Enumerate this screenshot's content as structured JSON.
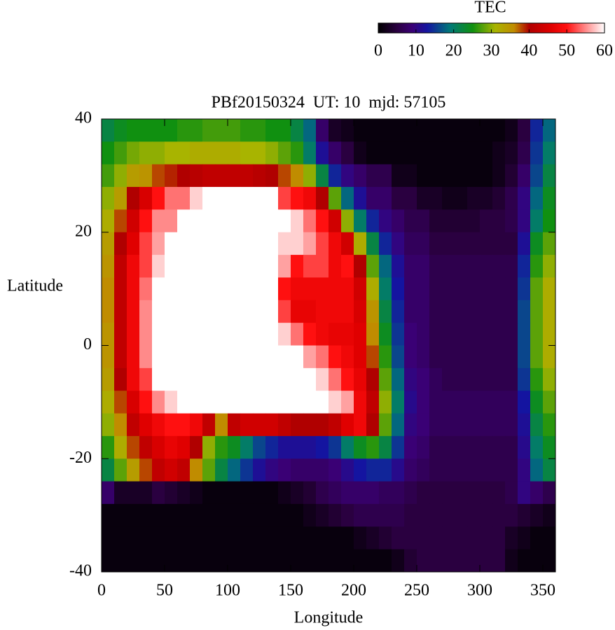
{
  "chart_data": {
    "type": "heatmap",
    "title": "PBf20150324  UT: 10  mjd: 57105",
    "x_label": "Longitude",
    "y_label": "Latitude",
    "xlim": [
      0,
      360
    ],
    "ylim": [
      -40,
      40
    ],
    "xticks": [
      0,
      50,
      100,
      150,
      200,
      250,
      300,
      350
    ],
    "yticks": [
      40,
      20,
      0,
      -20,
      -40
    ],
    "x": [
      5,
      15,
      25,
      35,
      45,
      55,
      65,
      75,
      85,
      95,
      105,
      115,
      125,
      135,
      145,
      155,
      165,
      175,
      185,
      195,
      205,
      215,
      225,
      235,
      245,
      255,
      265,
      275,
      285,
      295,
      305,
      315,
      325,
      335,
      345,
      355
    ],
    "y": [
      38,
      34,
      30,
      26,
      22,
      18,
      14,
      10,
      6,
      2,
      -2,
      -6,
      -10,
      -14,
      -18,
      -22,
      -26,
      -30,
      -34,
      -38
    ],
    "values": [
      [
        22,
        24,
        25,
        25,
        25,
        25,
        26,
        26,
        27,
        27,
        27,
        26,
        26,
        25,
        25,
        22,
        18,
        8,
        3,
        2,
        1,
        1,
        1,
        1,
        1,
        1,
        1,
        1,
        1,
        1,
        1,
        1,
        2,
        5,
        14,
        18
      ],
      [
        25,
        27,
        29,
        30,
        30,
        31,
        31,
        32,
        32,
        32,
        32,
        31,
        31,
        30,
        28,
        26,
        20,
        12,
        8,
        5,
        2,
        1,
        1,
        1,
        1,
        1,
        1,
        1,
        1,
        1,
        1,
        2,
        3,
        6,
        15,
        20
      ],
      [
        27,
        30,
        34,
        35,
        38,
        39,
        40,
        41,
        42,
        42,
        42,
        42,
        41,
        40,
        38,
        36,
        30,
        22,
        14,
        10,
        8,
        6,
        6,
        2,
        2,
        1,
        1,
        1,
        1,
        1,
        1,
        2,
        4,
        8,
        16,
        22
      ],
      [
        30,
        34,
        40,
        45,
        50,
        54,
        54,
        58,
        60,
        60,
        60,
        60,
        60,
        60,
        52,
        50,
        48,
        40,
        28,
        18,
        12,
        8,
        8,
        5,
        5,
        3,
        3,
        2,
        2,
        3,
        3,
        4,
        6,
        10,
        18,
        24
      ],
      [
        32,
        38,
        44,
        50,
        55,
        55,
        60,
        60,
        60,
        60,
        60,
        60,
        60,
        60,
        60,
        58,
        54,
        50,
        44,
        30,
        20,
        14,
        10,
        8,
        6,
        6,
        4,
        4,
        4,
        4,
        5,
        5,
        6,
        10,
        20,
        25
      ],
      [
        34,
        40,
        46,
        52,
        56,
        60,
        60,
        60,
        60,
        60,
        60,
        60,
        60,
        60,
        58,
        58,
        56,
        52,
        48,
        44,
        32,
        22,
        14,
        10,
        7,
        7,
        5,
        5,
        5,
        5,
        5,
        5,
        5,
        12,
        24,
        28
      ],
      [
        35,
        42,
        48,
        52,
        58,
        60,
        60,
        60,
        60,
        60,
        60,
        60,
        60,
        60,
        56,
        50,
        52,
        52,
        48,
        50,
        40,
        28,
        18,
        12,
        8,
        8,
        6,
        6,
        6,
        6,
        6,
        6,
        6,
        14,
        26,
        30
      ],
      [
        36,
        42,
        48,
        54,
        60,
        60,
        60,
        60,
        60,
        60,
        60,
        60,
        60,
        60,
        50,
        48,
        48,
        48,
        48,
        48,
        44,
        32,
        20,
        13,
        8,
        8,
        6,
        6,
        6,
        6,
        6,
        6,
        6,
        15,
        28,
        32
      ],
      [
        36,
        42,
        48,
        55,
        60,
        60,
        60,
        60,
        60,
        60,
        60,
        60,
        60,
        60,
        52,
        47,
        47,
        48,
        48,
        48,
        45,
        35,
        22,
        14,
        8,
        8,
        6,
        6,
        6,
        6,
        6,
        6,
        6,
        16,
        28,
        32
      ],
      [
        35,
        42,
        48,
        55,
        60,
        60,
        60,
        60,
        60,
        60,
        60,
        60,
        60,
        60,
        58,
        54,
        50,
        48,
        47,
        47,
        46,
        36,
        24,
        15,
        9,
        8,
        6,
        6,
        6,
        6,
        6,
        6,
        6,
        16,
        28,
        32
      ],
      [
        35,
        42,
        48,
        55,
        60,
        60,
        60,
        60,
        60,
        60,
        60,
        60,
        60,
        60,
        60,
        60,
        56,
        54,
        50,
        48,
        46,
        38,
        26,
        16,
        9,
        8,
        6,
        6,
        6,
        6,
        6,
        6,
        6,
        16,
        28,
        32
      ],
      [
        34,
        40,
        48,
        52,
        60,
        60,
        60,
        60,
        60,
        60,
        60,
        60,
        60,
        60,
        60,
        60,
        60,
        58,
        54,
        50,
        47,
        40,
        28,
        18,
        10,
        9,
        7,
        6,
        6,
        6,
        6,
        6,
        6,
        15,
        26,
        30
      ],
      [
        32,
        38,
        45,
        50,
        55,
        58,
        60,
        60,
        60,
        60,
        60,
        60,
        60,
        60,
        60,
        60,
        60,
        60,
        58,
        56,
        48,
        42,
        30,
        20,
        11,
        9,
        7,
        7,
        7,
        7,
        7,
        7,
        7,
        13,
        24,
        28
      ],
      [
        30,
        36,
        42,
        46,
        48,
        50,
        50,
        48,
        42,
        36,
        42,
        44,
        44,
        44,
        42,
        40,
        40,
        40,
        42,
        46,
        48,
        40,
        28,
        18,
        10,
        9,
        7,
        7,
        7,
        7,
        7,
        7,
        7,
        12,
        22,
        26
      ],
      [
        26,
        32,
        38,
        42,
        45,
        47,
        46,
        40,
        30,
        26,
        24,
        20,
        16,
        14,
        12,
        12,
        12,
        13,
        15,
        20,
        24,
        26,
        22,
        15,
        9,
        8,
        6,
        6,
        6,
        6,
        6,
        6,
        6,
        11,
        20,
        24
      ],
      [
        22,
        28,
        34,
        38,
        42,
        44,
        42,
        36,
        28,
        22,
        18,
        15,
        12,
        10,
        9,
        8,
        8,
        8,
        9,
        11,
        13,
        14,
        14,
        11,
        8,
        7,
        6,
        6,
        6,
        6,
        6,
        6,
        6,
        10,
        18,
        22
      ],
      [
        8,
        3,
        3,
        3,
        5,
        4,
        3,
        2,
        1,
        1,
        1,
        1,
        1,
        1,
        2,
        3,
        4,
        6,
        7,
        8,
        8,
        8,
        7,
        7,
        6,
        5,
        5,
        5,
        5,
        5,
        5,
        5,
        6,
        10,
        8,
        6
      ],
      [
        1,
        1,
        1,
        1,
        1,
        1,
        1,
        1,
        1,
        1,
        1,
        1,
        1,
        1,
        1,
        1,
        2,
        3,
        4,
        5,
        6,
        6,
        6,
        6,
        5,
        5,
        5,
        5,
        5,
        5,
        5,
        5,
        5,
        4,
        3,
        2
      ],
      [
        1,
        1,
        1,
        1,
        1,
        1,
        1,
        1,
        1,
        1,
        1,
        1,
        1,
        1,
        1,
        1,
        1,
        1,
        1,
        1,
        2,
        3,
        4,
        5,
        5,
        5,
        5,
        5,
        5,
        5,
        5,
        5,
        3,
        2,
        1,
        1
      ],
      [
        1,
        1,
        1,
        1,
        1,
        1,
        1,
        1,
        1,
        1,
        1,
        1,
        1,
        1,
        1,
        1,
        1,
        1,
        1,
        1,
        1,
        1,
        1,
        2,
        4,
        5,
        5,
        5,
        5,
        5,
        5,
        5,
        2,
        1,
        1,
        1
      ]
    ],
    "colorbar": {
      "label": "TEC",
      "lim": [
        0,
        60
      ],
      "ticks": [
        0,
        10,
        20,
        30,
        40,
        50,
        60
      ],
      "colormap": [
        [
          0,
          "#000000"
        ],
        [
          5,
          "#2a0040"
        ],
        [
          9,
          "#3a0075"
        ],
        [
          13,
          "#1414a0"
        ],
        [
          19,
          "#007878"
        ],
        [
          25,
          "#109010"
        ],
        [
          31,
          "#a8b400"
        ],
        [
          36,
          "#c08c00"
        ],
        [
          40,
          "#b00000"
        ],
        [
          46,
          "#e00000"
        ],
        [
          50,
          "#ff1010"
        ],
        [
          55,
          "#ff8a8a"
        ],
        [
          60,
          "#ffffff"
        ]
      ]
    }
  }
}
